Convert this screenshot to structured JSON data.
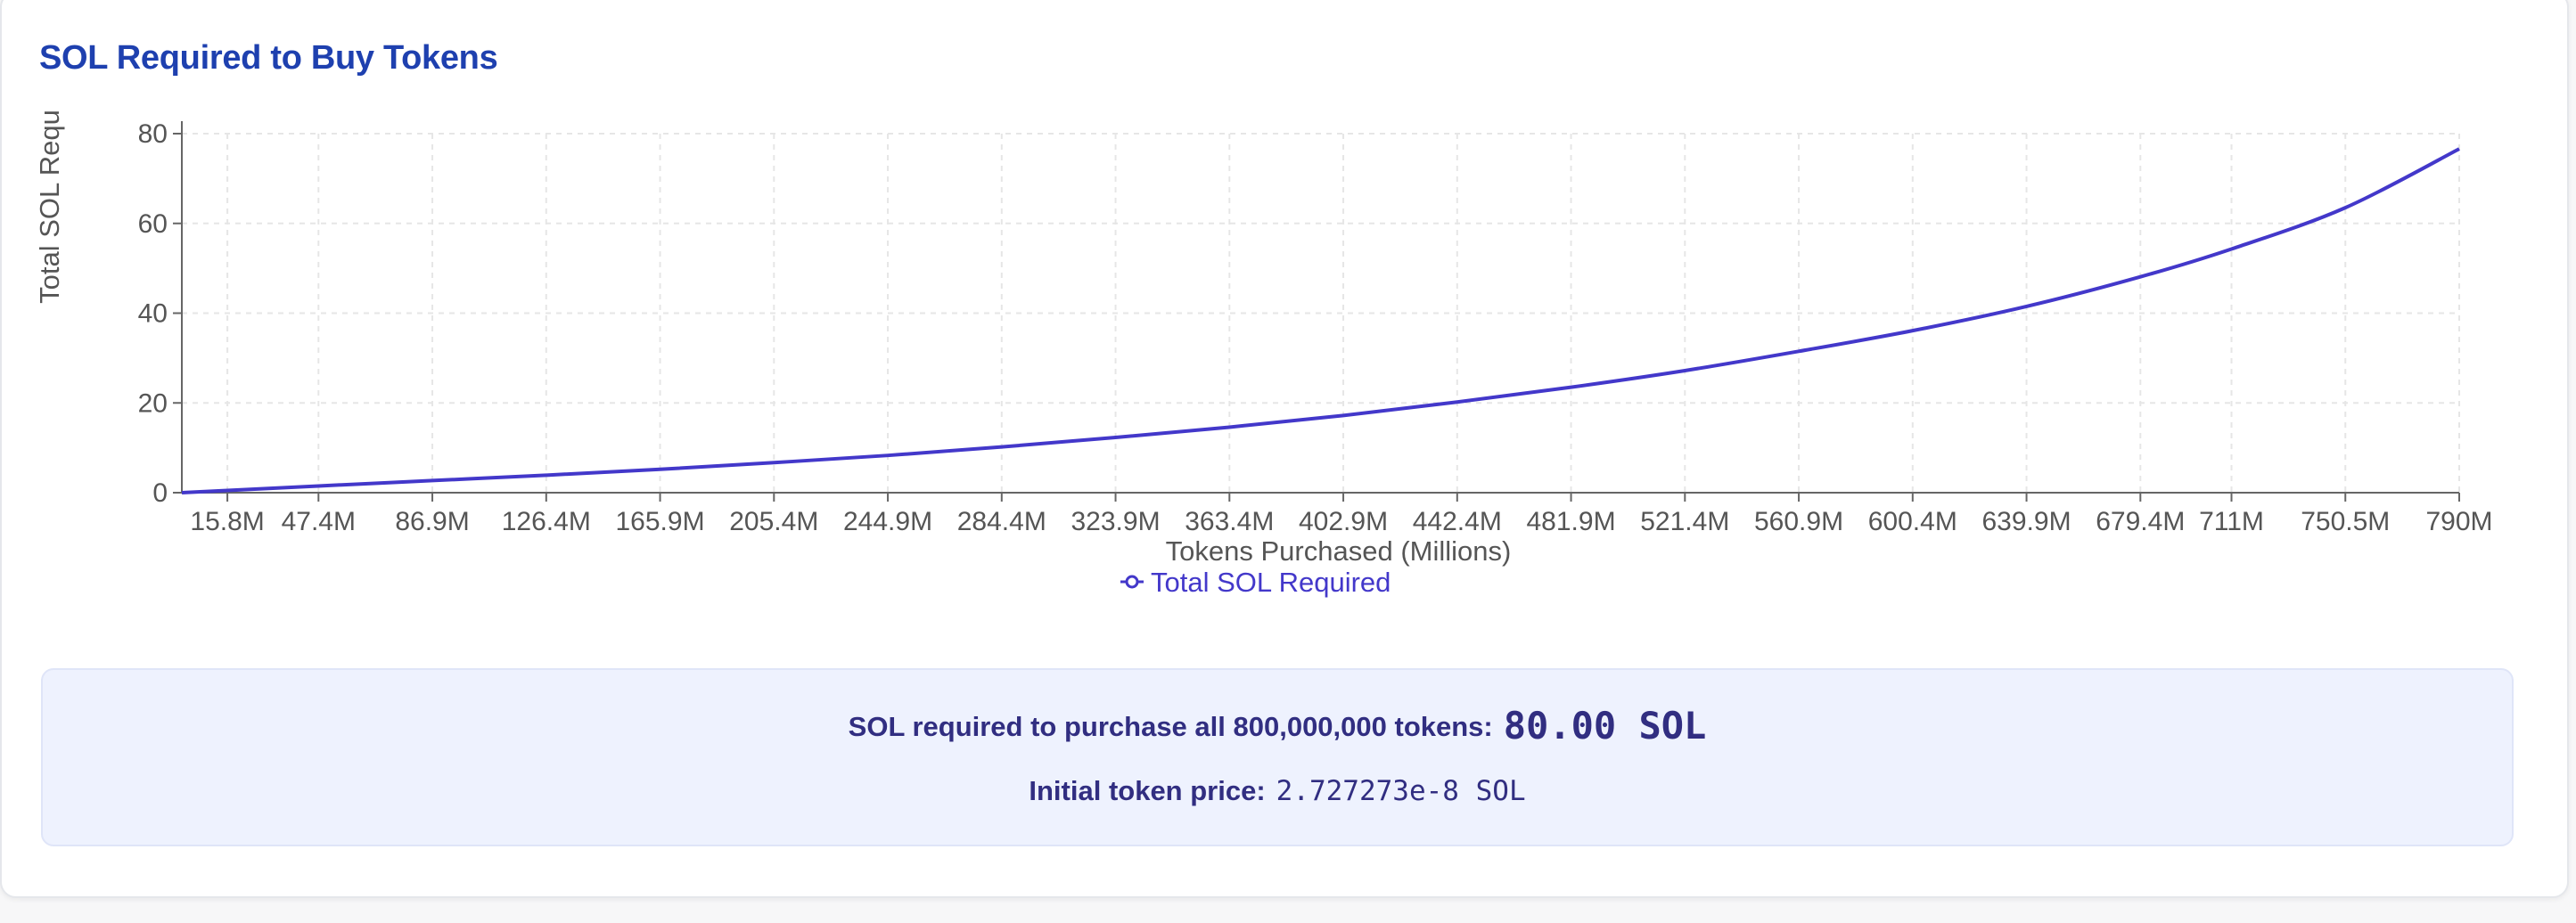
{
  "card": {
    "title": "SOL Required to Buy Tokens"
  },
  "chart_data": {
    "type": "line",
    "title": "",
    "xlabel": "Tokens Purchased (Millions)",
    "ylabel": "Total SOL Requ",
    "xlim": [
      0,
      790
    ],
    "ylim": [
      0,
      80
    ],
    "y_ticks": [
      0,
      20,
      40,
      60,
      80
    ],
    "x_ticks": [
      {
        "value": 15.8,
        "label": "15.8M"
      },
      {
        "value": 47.4,
        "label": "47.4M"
      },
      {
        "value": 86.9,
        "label": "86.9M"
      },
      {
        "value": 126.4,
        "label": "126.4M"
      },
      {
        "value": 165.9,
        "label": "165.9M"
      },
      {
        "value": 205.4,
        "label": "205.4M"
      },
      {
        "value": 244.9,
        "label": "244.9M"
      },
      {
        "value": 284.4,
        "label": "284.4M"
      },
      {
        "value": 323.9,
        "label": "323.9M"
      },
      {
        "value": 363.4,
        "label": "363.4M"
      },
      {
        "value": 402.9,
        "label": "402.9M"
      },
      {
        "value": 442.4,
        "label": "442.4M"
      },
      {
        "value": 481.9,
        "label": "481.9M"
      },
      {
        "value": 521.4,
        "label": "521.4M"
      },
      {
        "value": 560.9,
        "label": "560.9M"
      },
      {
        "value": 600.4,
        "label": "600.4M"
      },
      {
        "value": 639.9,
        "label": "639.9M"
      },
      {
        "value": 679.4,
        "label": "679.4M"
      },
      {
        "value": 711,
        "label": "711M"
      },
      {
        "value": 750.5,
        "label": "750.5M"
      },
      {
        "value": 790,
        "label": "790M"
      }
    ],
    "grid": true,
    "legend_position": "bottom-center",
    "series": [
      {
        "name": "Total SOL Required",
        "color": "#4338ca",
        "x": [
          0,
          15.8,
          47.4,
          86.9,
          126.4,
          165.9,
          205.4,
          244.9,
          284.4,
          323.9,
          363.4,
          402.9,
          442.4,
          481.9,
          521.4,
          560.9,
          600.4,
          639.9,
          679.4,
          711,
          750.5,
          790
        ],
        "y": [
          0,
          0.5,
          1.5,
          2.7,
          3.9,
          5.2,
          6.7,
          8.3,
          10.2,
          12.3,
          14.6,
          17.2,
          20.2,
          23.5,
          27.2,
          31.5,
          36.1,
          41.5,
          48.1,
          54.3,
          63.5,
          76.6
        ]
      }
    ]
  },
  "info": {
    "purchase_label": "SOL required to purchase all 800,000,000 tokens:",
    "purchase_value": "80.00 SOL",
    "price_label": "Initial token price:",
    "price_value": "2.727273e-8 SOL"
  }
}
